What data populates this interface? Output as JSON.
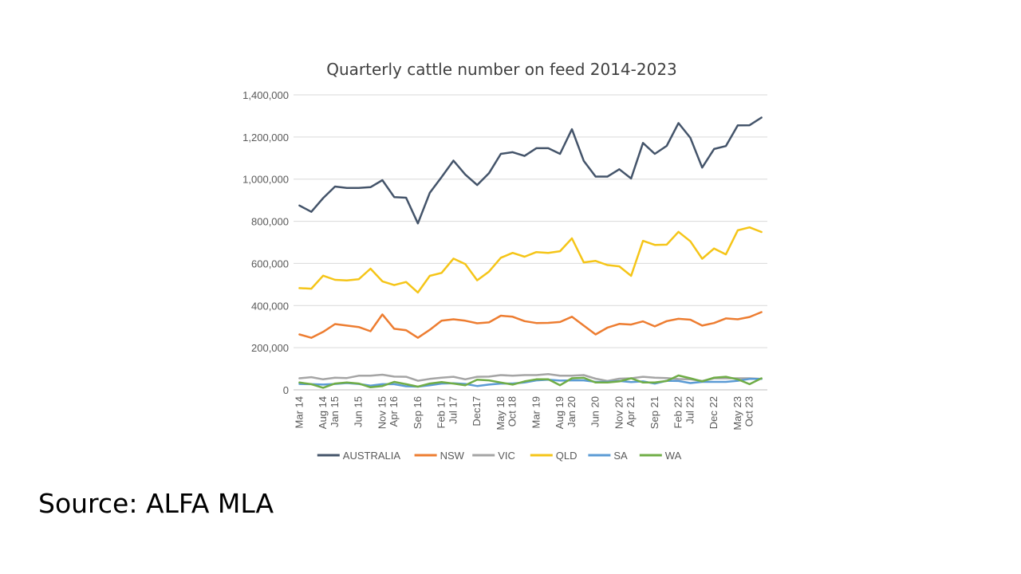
{
  "slide": {
    "source_text": "Source: ALFA MLA"
  },
  "chart_data": {
    "type": "line",
    "title": "Quarterly cattle number on feed 2014-2023",
    "xlabel": "",
    "ylabel": "",
    "ylim": [
      0,
      1400000
    ],
    "y_ticks": [
      "0",
      "200,000",
      "400,000",
      "600,000",
      "800,000",
      "1,000,000",
      "1,200,000",
      "1,400,000"
    ],
    "y_tick_values": [
      0,
      200000,
      400000,
      600000,
      800000,
      1000000,
      1200000,
      1400000
    ],
    "grid": "horizontal",
    "legend_position": "bottom",
    "x": [
      "Mar 14",
      "Jun 14",
      "Sep 14",
      "Dec 14",
      "Mar 15",
      "Jun 15",
      "Sep 15",
      "Dec 15",
      "Mar 16",
      "Jun 16",
      "Sep 16",
      "Dec 16",
      "Mar 17",
      "Jun 17",
      "Sep 17",
      "Dec 17",
      "Mar 18",
      "Jun 18",
      "Sep 18",
      "Dec 18",
      "Mar 19",
      "Jun 19",
      "Sep 19",
      "Dec 19",
      "Mar 20",
      "Jun 20",
      "Sep 20",
      "Dec 20",
      "Mar 21",
      "Jun 21",
      "Sep 21",
      "Dec 21",
      "Mar 22",
      "Jun 22",
      "Sep 22",
      "Dec 22",
      "Mar 23",
      "Jun 23",
      "Sep 23",
      "Dec 23"
    ],
    "x_tick_labels": [
      "Mar 14",
      "Aug 14",
      "Jan 15",
      "Jun 15",
      "Nov 15",
      "Apr 16",
      "Sep 16",
      "Feb 17",
      "Jul 17",
      "Dec17",
      "May 18",
      "Oct 18",
      "Mar 19",
      "Aug 19",
      "Jan 20",
      "Jun 20",
      "Nov 20",
      "Apr 21",
      "Sep 21",
      "Feb 22",
      "Jul 22",
      "Dec 22",
      "May 23",
      "Oct 23"
    ],
    "series": [
      {
        "name": "AUSTRALIA",
        "color": "#44546A",
        "values": [
          875000,
          845000,
          910000,
          965000,
          958000,
          958000,
          962000,
          995000,
          915000,
          912000,
          790000,
          935000,
          1010000,
          1088000,
          1022000,
          972000,
          1028000,
          1120000,
          1128000,
          1110000,
          1147000,
          1147000,
          1120000,
          1237000,
          1087000,
          1012000,
          1012000,
          1047000,
          1003000,
          1172000,
          1120000,
          1158000,
          1266000,
          1196000,
          1055000,
          1143000,
          1157000,
          1255000,
          1256000,
          1292000
        ]
      },
      {
        "name": "NSW",
        "color": "#ED7D31",
        "values": [
          263000,
          247000,
          275000,
          312000,
          305000,
          298000,
          278000,
          358000,
          290000,
          283000,
          247000,
          285000,
          328000,
          335000,
          328000,
          316000,
          320000,
          352000,
          347000,
          326000,
          317000,
          318000,
          322000,
          347000,
          305000,
          263000,
          295000,
          313000,
          310000,
          325000,
          301000,
          326000,
          337000,
          333000,
          305000,
          317000,
          339000,
          335000,
          346000,
          369000
        ]
      },
      {
        "name": "VIC",
        "color": "#A5A5A5",
        "values": [
          55000,
          60000,
          50000,
          58000,
          56000,
          67000,
          67000,
          72000,
          63000,
          62000,
          43000,
          52000,
          58000,
          62000,
          50000,
          62000,
          63000,
          70000,
          67000,
          70000,
          70000,
          75000,
          67000,
          67000,
          70000,
          53000,
          42000,
          53000,
          55000,
          62000,
          58000,
          56000,
          51000,
          50000,
          42000,
          55000,
          55000,
          55000,
          55000,
          52000
        ]
      },
      {
        "name": "QLD",
        "color": "#F5C518",
        "values": [
          483000,
          480000,
          542000,
          522000,
          519000,
          525000,
          575000,
          515000,
          497000,
          512000,
          462000,
          541000,
          555000,
          623000,
          597000,
          520000,
          561000,
          627000,
          650000,
          632000,
          654000,
          650000,
          658000,
          719000,
          605000,
          612000,
          592000,
          586000,
          541000,
          707000,
          688000,
          689000,
          750000,
          705000,
          622000,
          671000,
          643000,
          757000,
          771000,
          749000
        ]
      },
      {
        "name": "SA",
        "color": "#5B9BD5",
        "values": [
          28000,
          27000,
          25000,
          28000,
          32000,
          28000,
          20000,
          27000,
          27000,
          17000,
          15000,
          22000,
          30000,
          31000,
          28000,
          18000,
          25000,
          30000,
          30000,
          35000,
          45000,
          48000,
          44000,
          45000,
          45000,
          38000,
          38000,
          42000,
          37000,
          40000,
          30000,
          43000,
          42000,
          32000,
          38000,
          38000,
          38000,
          43000,
          52000,
          52000
        ]
      },
      {
        "name": "WA",
        "color": "#70AD47",
        "values": [
          35000,
          27000,
          10000,
          30000,
          35000,
          30000,
          12000,
          18000,
          38000,
          27000,
          15000,
          30000,
          37000,
          30000,
          22000,
          48000,
          45000,
          35000,
          25000,
          40000,
          50000,
          50000,
          22000,
          55000,
          57000,
          35000,
          35000,
          40000,
          55000,
          35000,
          35000,
          42000,
          68000,
          55000,
          40000,
          58000,
          62000,
          50000,
          27000,
          55000
        ]
      }
    ]
  }
}
